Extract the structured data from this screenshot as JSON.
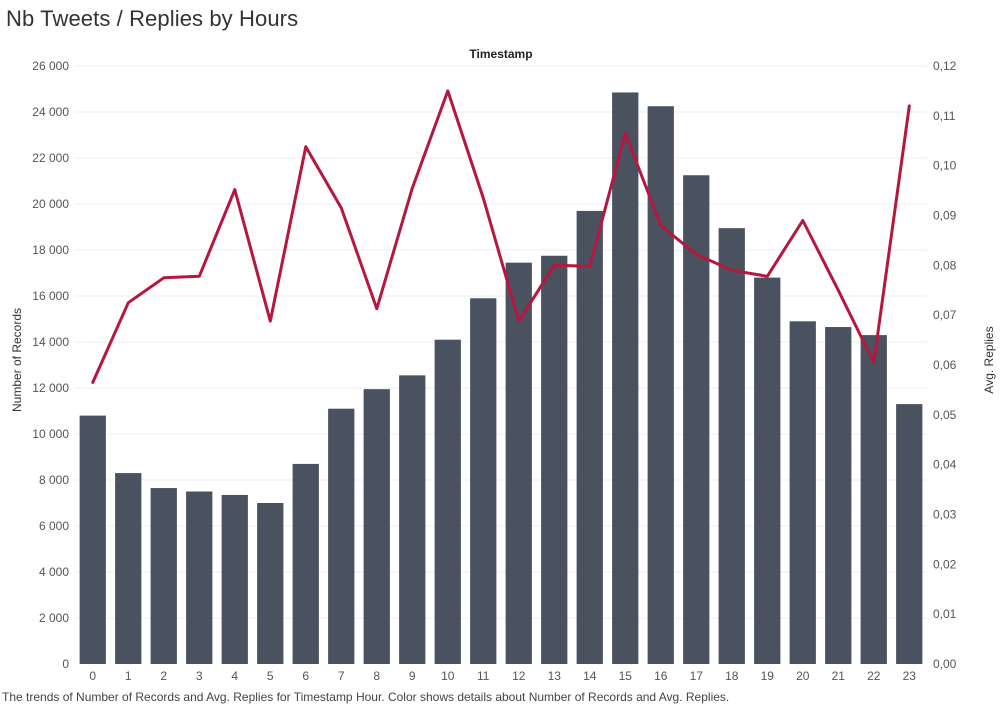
{
  "title": "Nb Tweets / Replies by Hours",
  "caption": "The trends of Number of Records and Avg. Replies for Timestamp Hour.  Color shows details about Number of Records and Avg. Replies.",
  "colors": {
    "bar": "#4a5260",
    "line": "#b5173f",
    "grid": "#ececec",
    "text": "#555555"
  },
  "chart_data": {
    "type": "bar",
    "column_header": "Timestamp",
    "categories": [
      "0",
      "1",
      "2",
      "3",
      "4",
      "5",
      "6",
      "7",
      "8",
      "9",
      "10",
      "11",
      "12",
      "13",
      "14",
      "15",
      "16",
      "17",
      "18",
      "19",
      "20",
      "21",
      "22",
      "23"
    ],
    "ylabel": "Number of Records",
    "ylabel_right": "Avg. Replies",
    "ylim": [
      0,
      26000
    ],
    "ylim_right": [
      0,
      0.12
    ],
    "yticks": [
      0,
      2000,
      4000,
      6000,
      8000,
      10000,
      12000,
      14000,
      16000,
      18000,
      20000,
      22000,
      24000,
      26000
    ],
    "yticks_labels": [
      "0",
      "2 000",
      "4 000",
      "6 000",
      "8 000",
      "10 000",
      "12 000",
      "14 000",
      "16 000",
      "18 000",
      "20 000",
      "22 000",
      "24 000",
      "26 000"
    ],
    "yticks_right_labels": [
      "0,00",
      "0,01",
      "0,02",
      "0,03",
      "0,04",
      "0,05",
      "0,06",
      "0,07",
      "0,08",
      "0,09",
      "0,10",
      "0,11",
      "0,12"
    ],
    "grid": true,
    "series": [
      {
        "kind": "bar",
        "axis": "left",
        "values": [
          10800,
          8300,
          7650,
          7500,
          7350,
          7000,
          8700,
          11100,
          11950,
          12550,
          14100,
          15900,
          17450,
          17750,
          19700,
          24850,
          24250,
          21250,
          18950,
          16800,
          14900,
          14650,
          14300,
          11300
        ]
      },
      {
        "kind": "line",
        "axis": "right",
        "values": [
          0.0565,
          0.0725,
          0.0775,
          0.0778,
          0.0952,
          0.0688,
          0.1038,
          0.0915,
          0.0713,
          0.0955,
          0.115,
          0.0935,
          0.0688,
          0.08,
          0.0798,
          0.1065,
          0.088,
          0.0822,
          0.079,
          0.0778,
          0.089,
          0.075,
          0.0605,
          0.112
        ]
      }
    ]
  }
}
